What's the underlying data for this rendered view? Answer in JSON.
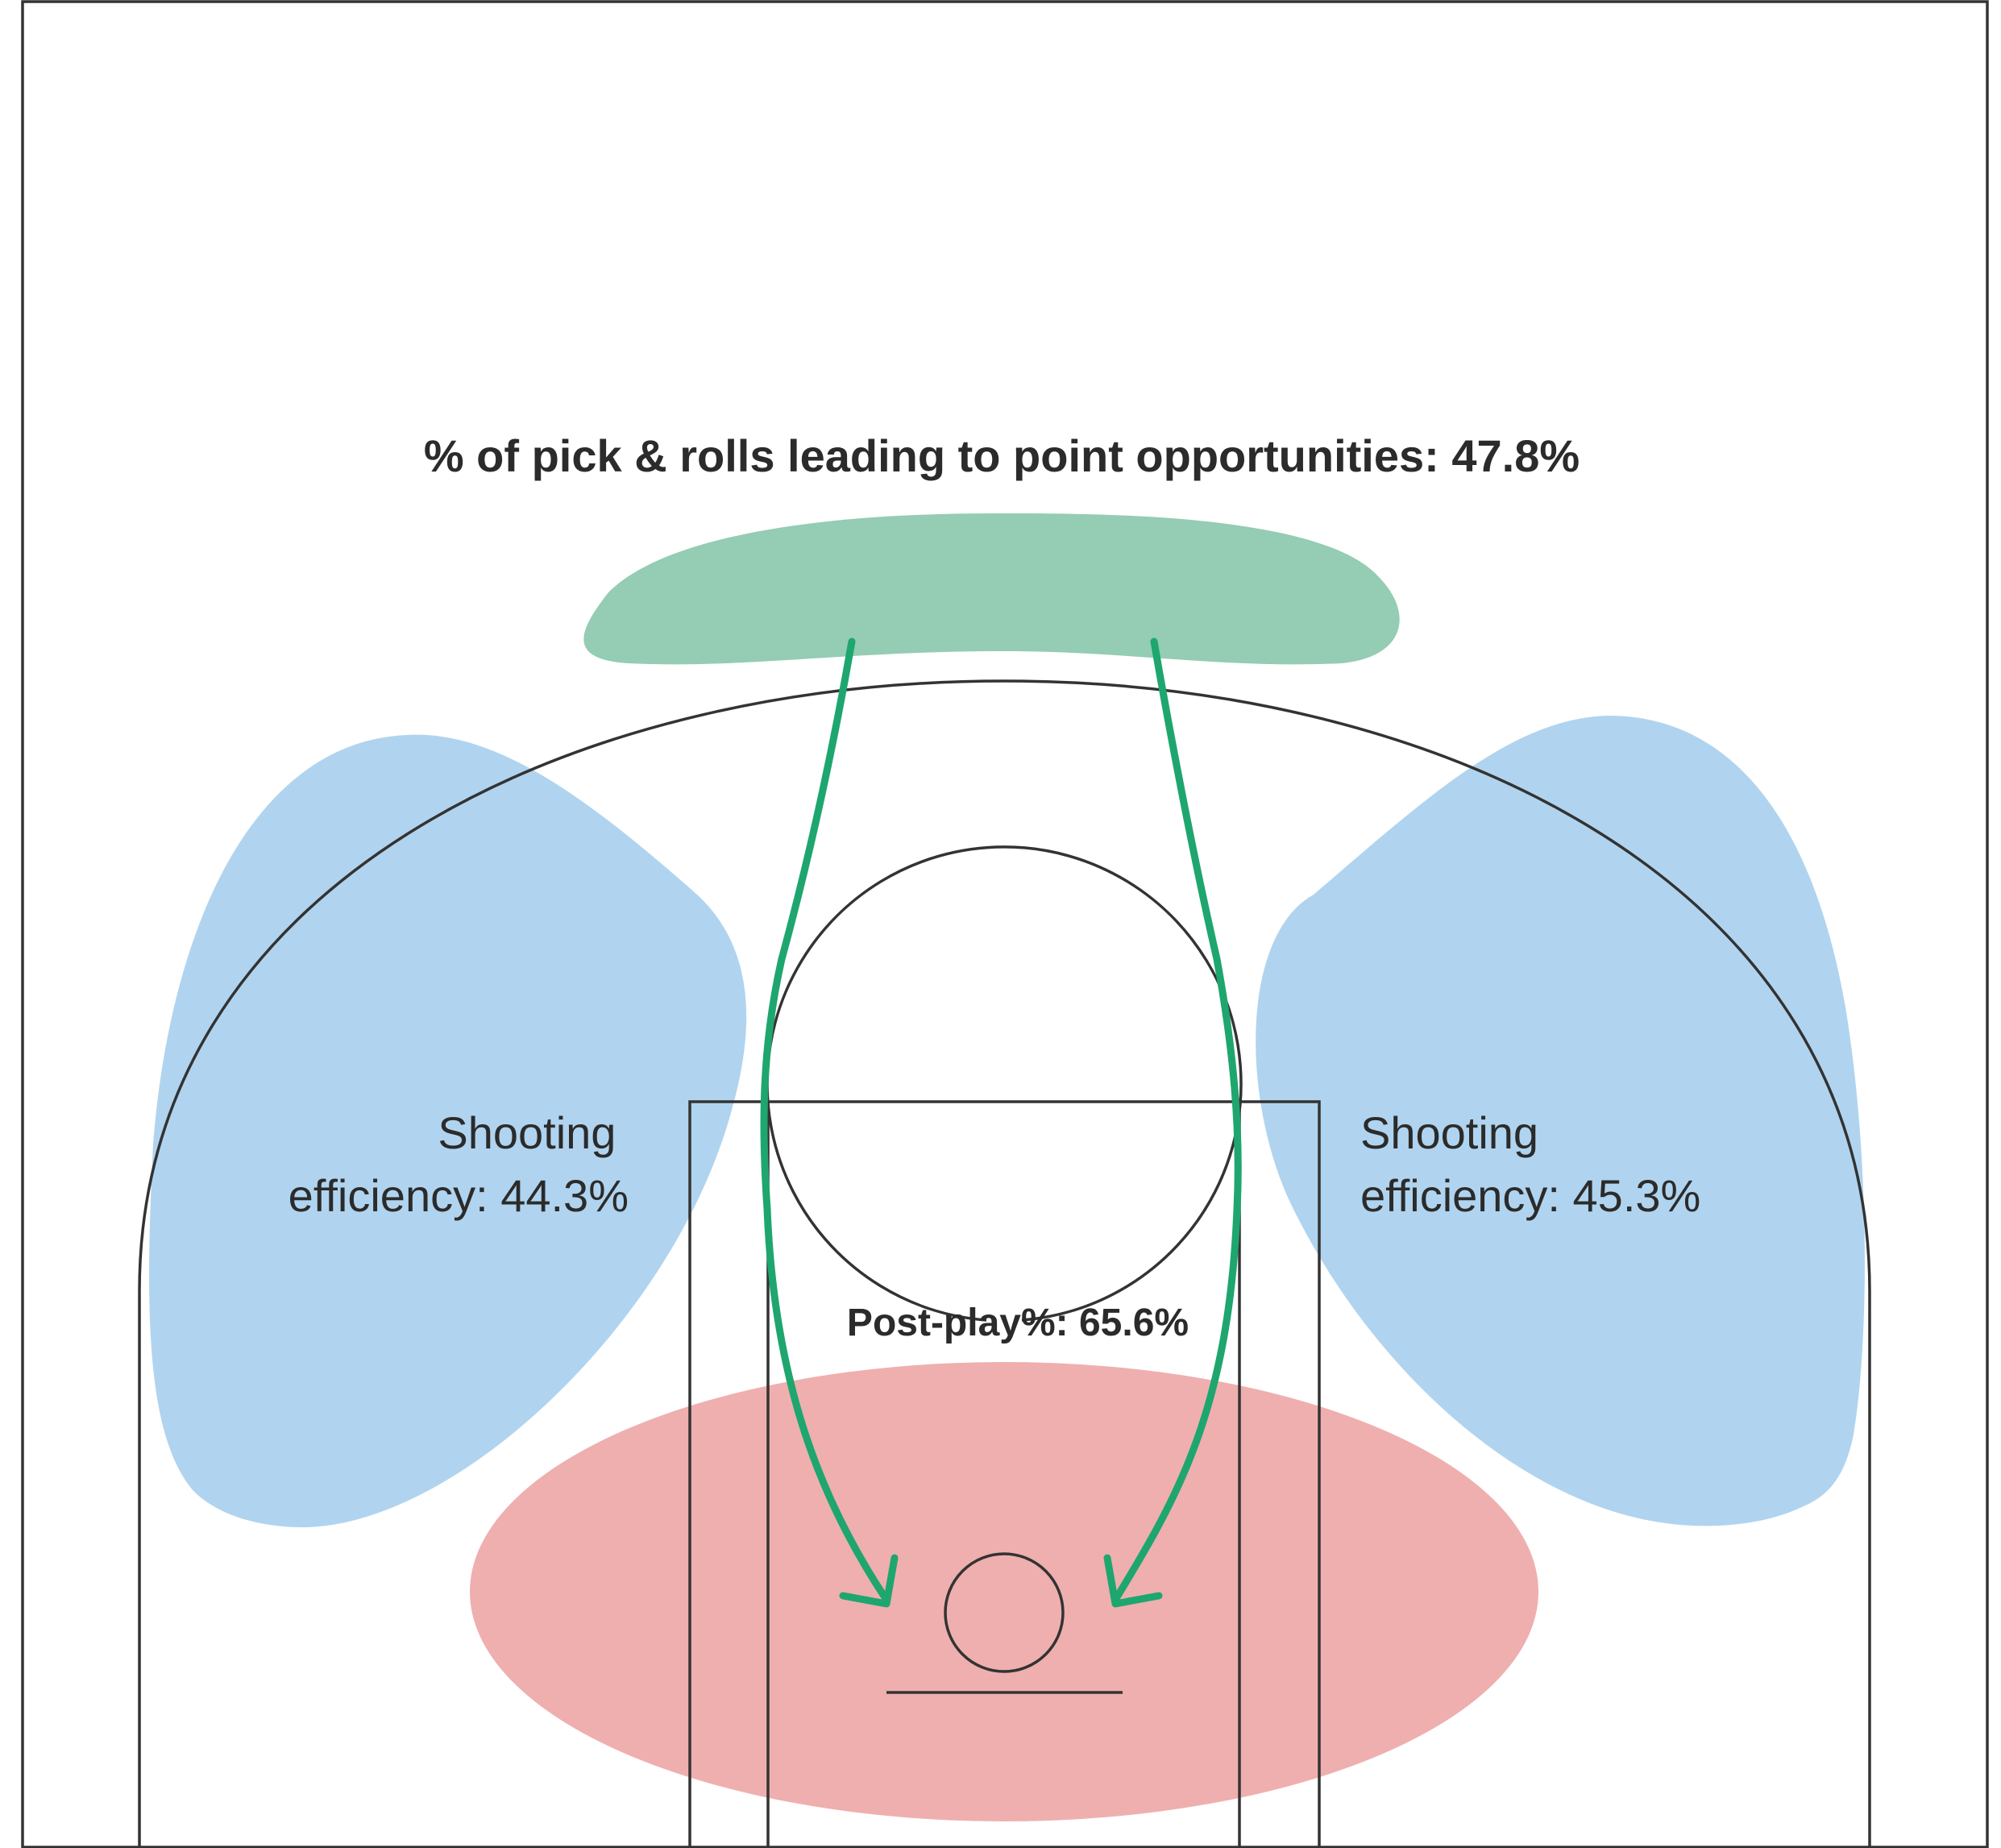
{
  "title": "% of pick & rolls leading to point opportunities: 47.8%",
  "zones": {
    "left_shooting": {
      "line1": "Shooting",
      "line2": "efficiency: 44.3%"
    },
    "right_shooting": {
      "line1": "Shooting",
      "line2": "efficiency: 45.3%"
    },
    "post_play": {
      "label": "Post-play%: 65.6%"
    }
  },
  "colors": {
    "pick_and_roll_zone": "#94ccb4",
    "shooting_zone": "#b0d4ef",
    "post_zone": "#efafaf",
    "arrow": "#1ea66e",
    "court_lines": "#333333",
    "text": "#2b2b2b"
  },
  "icons": {
    "arrows": "pick-and-roll-arrow-icon"
  }
}
